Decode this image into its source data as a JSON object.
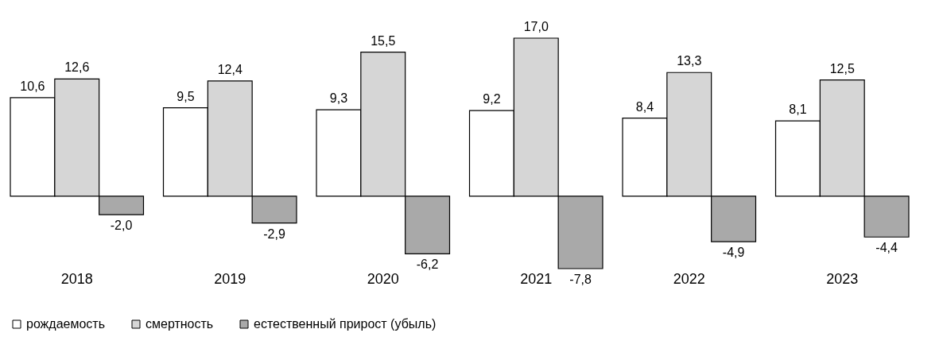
{
  "chart_data": {
    "type": "bar",
    "categories": [
      "2018",
      "2019",
      "2020",
      "2021",
      "2022",
      "2023"
    ],
    "series": [
      {
        "name": "рождаемость",
        "color": "#ffffff",
        "values": [
          10.6,
          9.5,
          9.3,
          9.2,
          8.4,
          8.1
        ],
        "value_labels": [
          "10,6",
          "9,5",
          "9,3",
          "9,2",
          "8,4",
          "8,1"
        ]
      },
      {
        "name": "смертность",
        "color": "#d6d6d6",
        "values": [
          12.6,
          12.4,
          15.5,
          17.0,
          13.3,
          12.5
        ],
        "value_labels": [
          "12,6",
          "12,4",
          "15,5",
          "17,0",
          "13,3",
          "12,5"
        ]
      },
      {
        "name": "естественный прирост (убыль)",
        "color": "#a9a9a9",
        "values": [
          -2.0,
          -2.9,
          -6.2,
          -7.8,
          -4.9,
          -4.4
        ],
        "value_labels": [
          "-2,0",
          "-2,9",
          "-6,2",
          "-7,8",
          "-4,9",
          "-4,4"
        ]
      }
    ],
    "legend": "bottom"
  }
}
